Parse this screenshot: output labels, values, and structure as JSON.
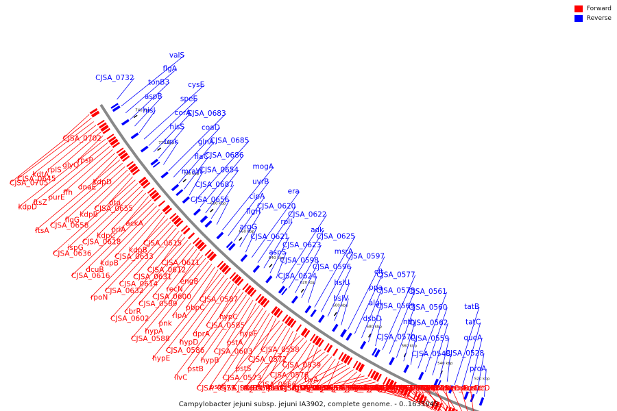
{
  "legend": {
    "forward_label": "Forward",
    "reverse_label": "Reverse",
    "forward_color": "#ff0000",
    "reverse_color": "#0000ff"
  },
  "caption": "Campylobacter jejuni subsp. jejuni IA3902, complete genome. - 0..1635045",
  "colors": {
    "backbone": "#888888",
    "tick": "#000000"
  },
  "ticks": [
    "520 kbp",
    "540 kbp",
    "560 kbp",
    "580 kbp",
    "600 kbp",
    "620 kbp",
    "640 kbp",
    "660 kbp",
    "680 kbp",
    "700 kbp",
    "720 kbp",
    "740 kbp"
  ],
  "forward_labels": [
    "mdh",
    "sucC",
    "oorB_sucD",
    "oorC_oorD",
    "proS",
    "hemC",
    "hemA",
    "oorA",
    "fliD",
    "ubiD",
    "CJSA_0506",
    "fliS",
    "flaG",
    "CJSA_0508",
    "CJSA_0522",
    "CJSA_0517",
    "CJSA_0511",
    "dnaB",
    "CJSA_0524",
    "efp",
    "CJSA_0526",
    "CJSA_0519",
    "ribB",
    "CJSA_0534",
    "CJSA_0527",
    "CJSA_0520",
    "CJSA_0541",
    "CJSA_0530",
    "CJSA_0521",
    "ilvB",
    "CJSA_0531",
    "nidH",
    "ilvH",
    "CJSA_0535",
    "lysC",
    "lpxD",
    "CJSA_0536",
    "ligA",
    "CJSA_0551",
    "CJSA_0537",
    "CJSA_0568",
    "peb4",
    "tlyA",
    "CJSA_0552",
    "CJSA_0538",
    "fba",
    "ribF",
    "folP",
    "CJSA_0539",
    "CJSA_0576",
    "CJSA_0566",
    "CJSA_0555",
    "CJSA_0574",
    "CJSA_0567",
    "CJSA_0558",
    "CJSA_0572",
    "pstS",
    "CJSA_0573",
    "pstC",
    "CJSA_0575",
    "hypF",
    "pstA",
    "CJSA_0603",
    "hypB",
    "pstB",
    "ilvC",
    "hypC",
    "CJSA_0585",
    "dprA",
    "hypD",
    "CJSA_0586",
    "hypE",
    "CJSA_0587",
    "pbpC",
    "rlpA",
    "pnk",
    "hypA",
    "CJSA_0588",
    "engB",
    "recN",
    "CJSA_0600",
    "CJSA_0589",
    "cbrR",
    "CJSA_0602",
    "CJSA_0611",
    "CJSA_0612",
    "CJSA_0631",
    "CJSA_0614",
    "CJSA_0632",
    "rpoN",
    "CJSA_0615",
    "kdpB",
    "CJSA_0633",
    "kdpB",
    "dcuB",
    "CJSA_0616",
    "ackA",
    "priA",
    "kdpC",
    "CJSA_0618",
    "ispG",
    "CJSA_0636",
    "pta",
    "CJSA_0655",
    "kdpB",
    "flgG",
    "CJSA_0658",
    "ftsA",
    "kdpD",
    "dnaE",
    "ffh",
    "purE",
    "ftsZ",
    "kdpD",
    "rpsP",
    "glyQ",
    "rplS",
    "kdtA",
    "CJSA_0645",
    "CJSA_0705",
    "CJSA_0702"
  ],
  "reverse_labels": [
    "proA",
    "CJSA_0528",
    "queA",
    "tatC",
    "tatB",
    "CJSA_0548",
    "CJSA_0559",
    "CJSA_0562",
    "CJSA_0560",
    "CJSA_0561",
    "CJSA_0570",
    "nth",
    "CJSA_0569",
    "CJSA_0578",
    "CJSA_0577",
    "dsbD",
    "algI",
    "ppa",
    "cft",
    "CJSA_0597",
    "hslV",
    "hslU",
    "CJSA_0596",
    "msrA",
    "CJSA_0625",
    "CJSA_0624",
    "CJSA_0598",
    "CJSA_0623",
    "adk",
    "CJSA_0622",
    "aspS",
    "CJSA_0621",
    "rplI",
    "CJSA_0620",
    "era",
    "argG",
    "flgH",
    "cipA",
    "uvrB",
    "mogA",
    "CJSA_0656",
    "CJSA_0687",
    "CJSA_0654",
    "CJSA_0686",
    "CJSA_0685",
    "mraW",
    "flaC",
    "glnA",
    "coaD",
    "CJSA_0683",
    "tmk",
    "hisS",
    "corA",
    "speE",
    "cysE",
    "hisJ",
    "aspB",
    "tonB3",
    "flgA",
    "valS",
    "CJSA_0732"
  ]
}
